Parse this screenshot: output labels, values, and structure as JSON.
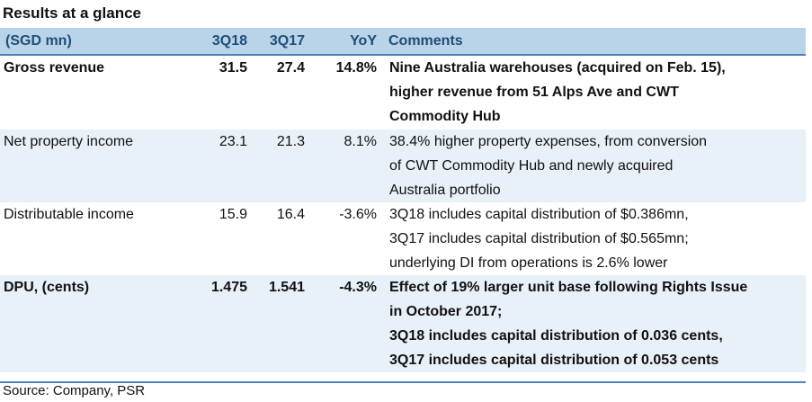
{
  "title": "Results at a glance",
  "table": {
    "headers": [
      "(SGD mn)",
      "3Q18",
      "3Q17",
      "YoY",
      "Comments"
    ],
    "rows": [
      {
        "label": "Gross revenue",
        "q3_18": "31.5",
        "q3_17": "27.4",
        "yoy": "14.8%",
        "comment_lines": [
          "Nine Australia warehouses (acquired on Feb. 15),",
          "higher revenue from 51 Alps Ave and CWT",
          "Commodity Hub"
        ]
      },
      {
        "label": "Net property income",
        "q3_18": "23.1",
        "q3_17": "21.3",
        "yoy": "8.1%",
        "comment_lines": [
          "38.4% higher property expenses, from conversion",
          "of CWT Commodity Hub and newly acquired",
          "Australia portfolio"
        ]
      },
      {
        "label": "Distributable income",
        "q3_18": "15.9",
        "q3_17": "16.4",
        "yoy": "-3.6%",
        "comment_lines": [
          "3Q18 includes capital distribution of $0.386mn,",
          "3Q17 includes capital distribution of $0.565mn;",
          "underlying DI from operations is 2.6% lower"
        ]
      },
      {
        "label": "DPU, (cents)",
        "q3_18": "1.475",
        "q3_17": "1.541",
        "yoy": "-4.3%",
        "comment_lines": [
          "Effect of 19% larger unit base following Rights Issue",
          "in October 2017;",
          "3Q18 includes capital distribution of 0.036 cents,",
          "3Q17 includes capital distribution of 0.053 cents"
        ]
      }
    ]
  },
  "source": "Source: Company, PSR",
  "colors": {
    "header_bg": "#b9d4e8",
    "header_text": "#1f4e79",
    "rule": "#4f81bd",
    "shaded_row_bg": "#e8f0f8"
  }
}
